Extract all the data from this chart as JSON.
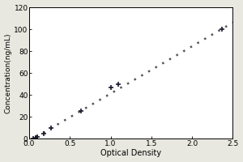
{
  "x_data": [
    0.047,
    0.083,
    0.1,
    0.182,
    0.273,
    0.637,
    1.0,
    1.092,
    2.365
  ],
  "y_data": [
    0.0,
    1.0,
    2.0,
    5.0,
    10.0,
    25.0,
    47.0,
    50.0,
    100.0
  ],
  "fit_x": [
    0.0,
    2.5
  ],
  "fit_y": [
    -2.0,
    106.0
  ],
  "xlabel": "Optical Density",
  "ylabel": "Concentration(ng/mL)",
  "xlim": [
    0,
    2.5
  ],
  "ylim": [
    0,
    120
  ],
  "xticks": [
    0,
    0.5,
    1,
    1.5,
    2,
    2.5
  ],
  "yticks": [
    0,
    20,
    40,
    60,
    80,
    100,
    120
  ],
  "marker": "+",
  "marker_color": "#1a1a2e",
  "line_color": "#555555",
  "line_style": "dotted",
  "marker_size": 5,
  "marker_linewidth": 1.2,
  "line_width": 1.8,
  "bg_color": "#e8e8e0",
  "plot_bg_color": "#ffffff",
  "tick_fontsize": 6.5,
  "label_fontsize": 7,
  "ylabel_fontsize": 6.5
}
